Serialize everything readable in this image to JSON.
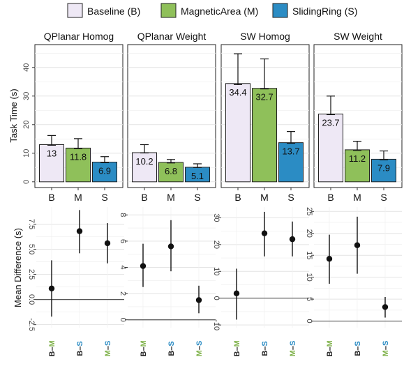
{
  "colors": {
    "B": "#eee8f5",
    "M": "#8fc05a",
    "S": "#2b8cc4",
    "bar_stroke": "#222222",
    "label_B": "#222222",
    "label_M": "#7fb24a",
    "label_S": "#2b8cc4"
  },
  "legend": [
    {
      "key": "B",
      "label": "Baseline (B)"
    },
    {
      "key": "M",
      "label": "MagneticArea (M)"
    },
    {
      "key": "S",
      "label": "SlidingRing (S)"
    }
  ],
  "chart_data": [
    {
      "type": "bar",
      "ylabel": "Task Time (s)",
      "ylim": [
        -2,
        48
      ],
      "yticks": [
        0,
        10,
        20,
        30,
        40
      ],
      "categories": [
        "B",
        "M",
        "S"
      ],
      "panels": [
        {
          "title": "QPlanar Homog",
          "values": [
            13,
            11.8,
            6.9
          ],
          "ci_low": [
            12.8,
            11.6,
            6.7
          ],
          "ci_high": [
            16.2,
            15.1,
            8.8
          ],
          "labels": [
            "13",
            "11.8",
            "6.9"
          ]
        },
        {
          "title": "QPlanar Weight",
          "values": [
            10.2,
            6.8,
            5.1
          ],
          "ci_low": [
            10.1,
            6.6,
            5.0
          ],
          "ci_high": [
            13.0,
            7.8,
            6.3
          ],
          "labels": [
            "10.2",
            "6.8",
            "5.1"
          ]
        },
        {
          "title": "SW Homog",
          "values": [
            34.4,
            32.7,
            13.7
          ],
          "ci_low": [
            34.0,
            32.5,
            13.5
          ],
          "ci_high": [
            44.8,
            43.0,
            17.6
          ],
          "labels": [
            "34.4",
            "32.7",
            "13.7"
          ]
        },
        {
          "title": "SW Weight",
          "values": [
            23.7,
            11.2,
            7.9
          ],
          "ci_low": [
            23.5,
            11.0,
            7.7
          ],
          "ci_high": [
            30.0,
            14.2,
            10.8
          ],
          "labels": [
            "23.7",
            "11.2",
            "7.9"
          ]
        }
      ]
    },
    {
      "type": "scatter",
      "ylabel": "Mean Difference (s)",
      "categories": [
        "B–M",
        "B–S",
        "M–S"
      ],
      "panels": [
        {
          "ylim": [
            -2.8,
            9.2
          ],
          "yticks": [
            -2.5,
            0.0,
            2.5,
            5.0,
            7.5
          ],
          "ytick_labels": [
            "-2.5",
            "0.0",
            "2.5",
            "5.0",
            "7.5"
          ],
          "values": [
            1.1,
            6.8,
            5.6
          ],
          "ci_low": [
            -1.7,
            4.6,
            3.6
          ],
          "ci_high": [
            3.9,
            8.9,
            7.6
          ]
        },
        {
          "ylim": [
            -0.6,
            8.6
          ],
          "yticks": [
            0,
            2,
            4,
            6,
            8
          ],
          "ytick_labels": [
            "0",
            "2",
            "4",
            "6",
            "8"
          ],
          "values": [
            4.1,
            5.6,
            1.5
          ],
          "ci_low": [
            2.5,
            3.7,
            0.5
          ],
          "ci_high": [
            5.8,
            7.6,
            2.6
          ]
        },
        {
          "ylim": [
            -11,
            34
          ],
          "yticks": [
            -10,
            0,
            10,
            20,
            30
          ],
          "ytick_labels": [
            "-10",
            "0",
            "10",
            "20",
            "30"
          ],
          "values": [
            1.8,
            24.2,
            22.0
          ],
          "ci_low": [
            -8.0,
            15.6,
            15.6
          ],
          "ci_high": [
            11.0,
            32.2,
            28.6
          ]
        },
        {
          "ylim": [
            -1.5,
            26
          ],
          "yticks": [
            0,
            5,
            10,
            15,
            20,
            25
          ],
          "ytick_labels": [
            "0",
            "5",
            "10",
            "15",
            "20",
            "25"
          ],
          "values": [
            14.2,
            17.3,
            3.2
          ],
          "ci_low": [
            8.5,
            10.8,
            0.8
          ],
          "ci_high": [
            19.7,
            23.8,
            5.5
          ]
        }
      ]
    }
  ]
}
